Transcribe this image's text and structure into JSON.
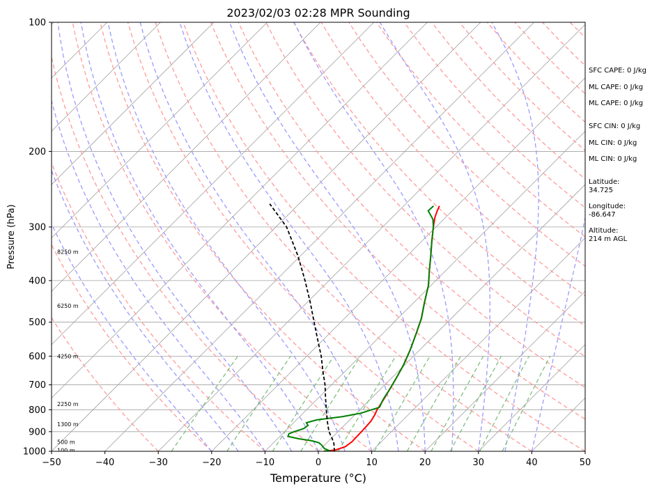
{
  "chart_data": {
    "type": "line",
    "title": "2023/02/03 02:28 MPR Sounding",
    "xlabel": "Temperature (°C)",
    "ylabel": "Pressure (hPa)",
    "xlim": [
      -50,
      50
    ],
    "ylim": [
      1000,
      100
    ],
    "y_scale": "log",
    "x_ticks": [
      -50,
      -40,
      -30,
      -20,
      -10,
      0,
      10,
      20,
      30,
      40,
      50
    ],
    "x_tick_labels": [
      "−50",
      "−40",
      "−30",
      "−20",
      "−10",
      "0",
      "10",
      "20",
      "30",
      "40",
      "50"
    ],
    "y_ticks": [
      1000,
      900,
      800,
      700,
      600,
      500,
      400,
      300,
      200,
      100
    ],
    "y_tick_labels": [
      "1000",
      "900",
      "800",
      "700",
      "600",
      "500",
      "400",
      "300",
      "200",
      "100"
    ],
    "grid": true,
    "series": [
      {
        "color": "#ff0000",
        "points": [
          [
            1.0,
            1000
          ],
          [
            3.0,
            993
          ],
          [
            4.2,
            975
          ],
          [
            4.5,
            950
          ],
          [
            4.4,
            900
          ],
          [
            4.3,
            870
          ],
          [
            4.2,
            850
          ],
          [
            3.7,
            820
          ],
          [
            3.2,
            800
          ],
          [
            2.9,
            780
          ],
          [
            2.4,
            750
          ],
          [
            1.8,
            720
          ],
          [
            1.0,
            680
          ],
          [
            -0.2,
            630
          ],
          [
            -1.8,
            580
          ],
          [
            -3.8,
            530
          ],
          [
            -5.6,
            490
          ],
          [
            -8.0,
            450
          ],
          [
            -10.5,
            410
          ],
          [
            -13.0,
            380
          ],
          [
            -15.6,
            350
          ],
          [
            -18.0,
            325
          ],
          [
            -20.5,
            300
          ],
          [
            -22.0,
            285
          ],
          [
            -22.8,
            275
          ],
          [
            -23.3,
            268
          ]
        ]
      },
      {
        "color": "#008000",
        "points": [
          [
            1.0,
            1000
          ],
          [
            1.8,
            995
          ],
          [
            0.6,
            985
          ],
          [
            -0.5,
            968
          ],
          [
            -1.5,
            955
          ],
          [
            -3.2,
            945
          ],
          [
            -6.0,
            935
          ],
          [
            -8.5,
            923
          ],
          [
            -8.8,
            910
          ],
          [
            -8.2,
            900
          ],
          [
            -7.0,
            885
          ],
          [
            -6.8,
            870
          ],
          [
            -7.6,
            858
          ],
          [
            -6.2,
            845
          ],
          [
            -2.0,
            830
          ],
          [
            0.8,
            815
          ],
          [
            2.2,
            800
          ],
          [
            3.2,
            790
          ],
          [
            3.0,
            780
          ],
          [
            2.6,
            765
          ],
          [
            2.3,
            750
          ],
          [
            1.8,
            720
          ],
          [
            1.0,
            680
          ],
          [
            -0.2,
            630
          ],
          [
            -1.8,
            580
          ],
          [
            -3.8,
            530
          ],
          [
            -5.6,
            490
          ],
          [
            -8.0,
            450
          ],
          [
            -10.5,
            410
          ],
          [
            -13.0,
            380
          ],
          [
            -15.6,
            350
          ],
          [
            -18.0,
            325
          ],
          [
            -20.5,
            300
          ],
          [
            -22.0,
            288
          ],
          [
            -24.5,
            275
          ],
          [
            -24.4,
            268
          ]
        ]
      },
      {
        "color": "#000000",
        "dash": "dashed",
        "points": [
          [
            3.0,
            1000
          ],
          [
            1.5,
            960
          ],
          [
            0.0,
            930
          ],
          [
            -1.7,
            900
          ],
          [
            -4.0,
            850
          ],
          [
            -6.3,
            800
          ],
          [
            -8.7,
            750
          ],
          [
            -11.2,
            700
          ],
          [
            -14.2,
            650
          ],
          [
            -17.3,
            600
          ],
          [
            -21.0,
            550
          ],
          [
            -25.0,
            500
          ],
          [
            -29.4,
            450
          ],
          [
            -34.5,
            400
          ],
          [
            -40.5,
            350
          ],
          [
            -48.0,
            300
          ],
          [
            -55.5,
            265
          ]
        ]
      }
    ],
    "height_labels": [
      {
        "label": "100 m",
        "p": 995
      },
      {
        "label": "500 m",
        "p": 950
      },
      {
        "label": "1300 m",
        "p": 865
      },
      {
        "label": "2250 m",
        "p": 775
      },
      {
        "label": "4250 m",
        "p": 600
      },
      {
        "label": "6250 m",
        "p": 458
      },
      {
        "label": "8250 m",
        "p": 343
      }
    ],
    "side_panel": [
      "SFC CAPE: 0 J/kg",
      "ML CAPE: 0 J/kg",
      "ML CAPE: 0 J/kg",
      "SFC CIN: 0 J/kg",
      "ML CIN: 0 J/kg",
      "ML CIN: 0 J/kg",
      "Latitude:",
      "34.725",
      "Longitude:",
      "-86.647",
      "Altitude:",
      "214 m AGL"
    ],
    "colors": {
      "temperature": "#ff0000",
      "dewpoint": "#008000",
      "parcel": "#000000",
      "isotherm": "#a0a0a0",
      "dry_adiabat": "#ff9a9a",
      "moist_adiabat": "#9a9aff",
      "mixing_ratio": "#7fbf7f"
    }
  }
}
